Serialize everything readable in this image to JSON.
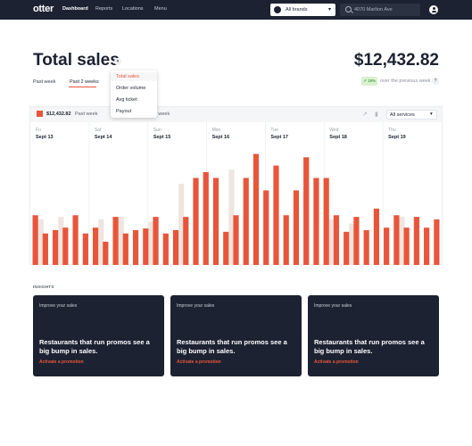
{
  "nav": {
    "logo": "otter",
    "items": [
      "Dashboard",
      "Reports",
      "Locations",
      "Menu"
    ],
    "brand_select": "All brands",
    "address": "4070 Marlton Ave"
  },
  "header": {
    "title": "Total sales",
    "total": "$12,432.82",
    "tabs": [
      "Past week",
      "Past 2 weeks"
    ],
    "badge": "18%",
    "compare_text": "over the previous week",
    "help": "?"
  },
  "dropdown": {
    "items": [
      "Total sales",
      "Order volume",
      "Avg ticket",
      "Payout"
    ]
  },
  "chart_panel": {
    "legend_value": "$12,432.82",
    "legend_label": "Past week",
    "legend_label_2": "r week",
    "services_select": "All services"
  },
  "chart_data": {
    "type": "bar",
    "days": [
      {
        "dow": "Fri",
        "date": "Sept 13"
      },
      {
        "dow": "Sat",
        "date": "Sept 14"
      },
      {
        "dow": "Sun",
        "date": "Sept 15"
      },
      {
        "dow": "Mon",
        "date": "Sept 16"
      },
      {
        "dow": "Tue",
        "date": "Sept 17"
      },
      {
        "dow": "Wed",
        "date": "Sept 18"
      },
      {
        "dow": "Thu",
        "date": "Sept 19"
      }
    ],
    "series": [
      {
        "color": "#e8553a",
        "values": [
          60,
          38,
          42,
          45,
          60,
          38,
          45,
          28,
          58,
          38,
          42,
          44,
          58,
          38,
          42,
          58,
          105,
          112,
          105,
          40,
          60,
          105,
          134,
          90,
          120,
          60,
          90,
          130,
          105,
          105,
          60,
          40,
          58,
          42,
          68,
          45,
          60,
          45,
          58,
          45,
          55
        ]
      },
      {
        "color": "#eee5e0",
        "values": [
          0,
          55,
          0,
          58,
          0,
          0,
          0,
          55,
          0,
          58,
          0,
          0,
          52,
          0,
          0,
          98,
          0,
          0,
          0,
          0,
          115,
          0,
          0,
          0,
          0,
          0,
          0,
          0,
          0,
          0,
          55,
          0,
          50,
          0,
          0,
          0,
          0,
          58,
          0,
          0,
          0
        ]
      }
    ],
    "ylim": [
      0,
      140
    ]
  },
  "insights": {
    "label": "INSIGHTS",
    "cards": [
      {
        "kicker": "Improve your sales",
        "headline": "Restaurants that run promos see a big bump in sales.",
        "link": "Activate a promotion"
      },
      {
        "kicker": "Improve your sales",
        "headline": "Restaurants that run promos see a big bump in sales.",
        "link": "Activate a promotion"
      },
      {
        "kicker": "Improve your sales",
        "headline": "Restaurants that run promos see a big bump in sales.",
        "link": "Activate a promotion"
      }
    ]
  },
  "colors": {
    "accent": "#e8553a",
    "nav_bg": "#1c2231",
    "badge_bg": "#d8f1cf",
    "badge_text": "#2f7d26"
  }
}
